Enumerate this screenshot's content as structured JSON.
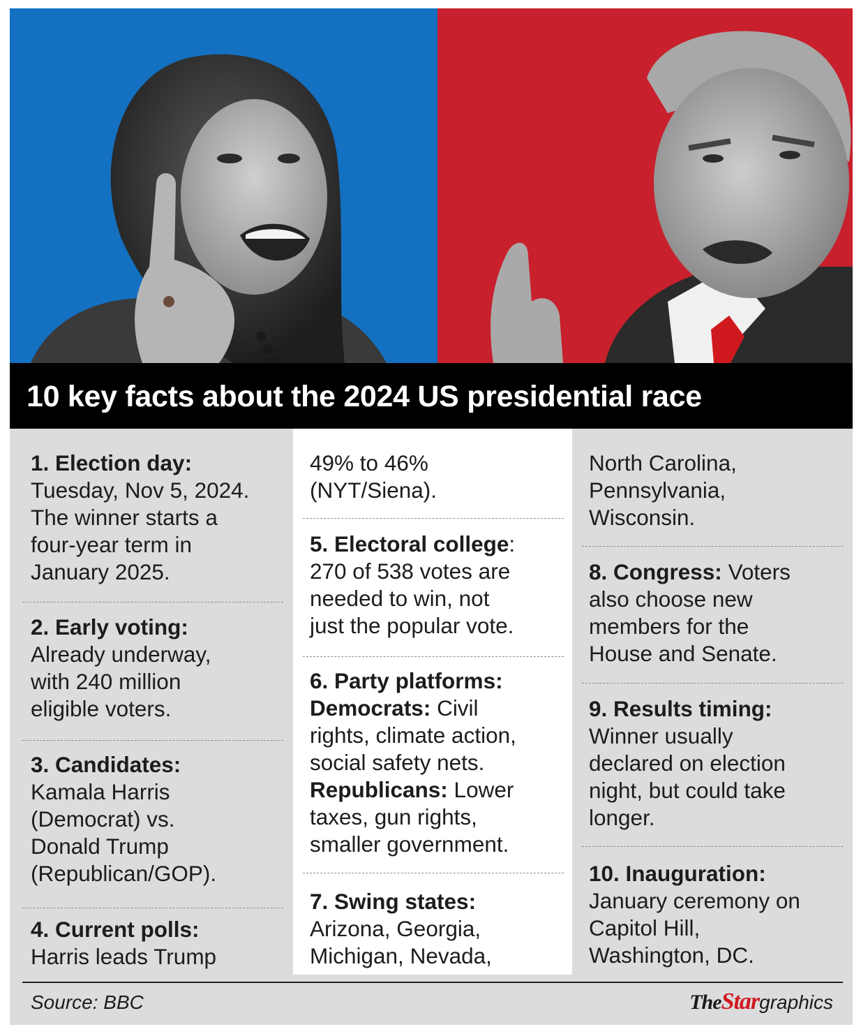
{
  "colors": {
    "democrat_blue": "#1470c0",
    "republican_red": "#c8202c",
    "headline_bg": "#000000",
    "panel_grey": "#dcdcde",
    "brand_red": "#d0191f"
  },
  "photos": {
    "left": {
      "subject": "Kamala Harris portrait",
      "icon": "person-photo"
    },
    "right": {
      "subject": "Donald Trump portrait",
      "icon": "person-photo"
    }
  },
  "headline": "10 key facts about the 2024 US presidential race",
  "facts": {
    "f1": {
      "title": "1. Election day:",
      "lines": [
        "Tuesday, Nov 5, 2024.",
        "The winner starts a",
        "four-year term in",
        "January 2025."
      ]
    },
    "f2": {
      "title": "2. Early voting:",
      "lines": [
        "Already underway,",
        "with 240 million",
        "eligible voters."
      ]
    },
    "f3": {
      "title": "3. Candidates:",
      "lines": [
        "Kamala Harris",
        "(Democrat) vs.",
        "Donald Trump",
        "(Republican/GOP)."
      ]
    },
    "f4": {
      "title": "4. Current polls:",
      "lines": [
        "Harris leads Trump",
        "49% to 46%",
        "(NYT/Siena)."
      ]
    },
    "f5": {
      "title": "5. Electoral college",
      "title_suffix": ":",
      "lines": [
        "270 of 538 votes are",
        "needed to win, not",
        "just the popular vote."
      ]
    },
    "f6": {
      "title": "6. Party platforms:",
      "dem_label": "Democrats:",
      "dem_first": " Civil",
      "dem_lines": [
        "rights, climate action,",
        "social safety nets."
      ],
      "rep_label": "Republicans:",
      "rep_first": " Lower",
      "rep_lines": [
        "taxes, gun rights,",
        "smaller government."
      ]
    },
    "f7": {
      "title": "7. Swing states:",
      "lines": [
        "Arizona, Georgia,",
        "Michigan, Nevada,",
        "North Carolina,",
        "Pennsylvania,",
        "Wisconsin."
      ]
    },
    "f8": {
      "title": "8. Congress:",
      "first": " Voters",
      "lines": [
        "also choose new",
        "members for the",
        "House and Senate."
      ]
    },
    "f9": {
      "title": "9. Results timing:",
      "lines": [
        "Winner usually",
        "declared on election",
        "night, but could take",
        "longer."
      ]
    },
    "f10": {
      "title": "10. Inauguration:",
      "lines": [
        "January ceremony on",
        "Capitol Hill,",
        "Washington, DC."
      ]
    }
  },
  "footer": {
    "source": "Source: BBC",
    "brand_the": "The",
    "brand_star": "Star",
    "brand_graphics": "graphics"
  }
}
